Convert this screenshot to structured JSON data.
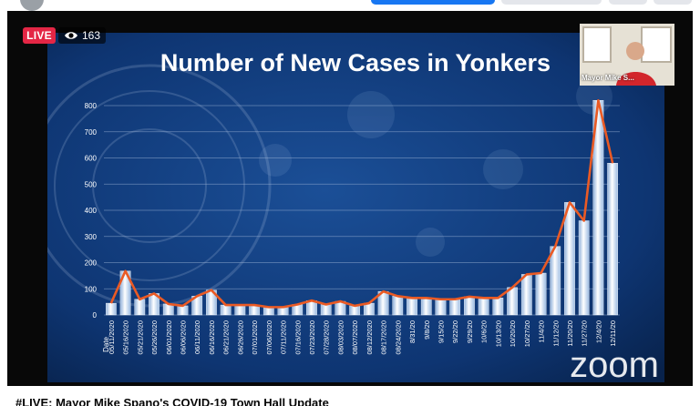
{
  "player": {
    "live_label": "LIVE",
    "viewer_count": "163",
    "speaker_name": "Mayor Mike S...",
    "watermark": "zoom",
    "video_title": "#LIVE: Mayor Mike Spano's COVID-19 Town Hall Update"
  },
  "icons": {
    "viewers": "eye-icon"
  },
  "colors": {
    "live": "#e42645",
    "slide_background": "#0c2f66",
    "bar": "#dfeafa",
    "trend_line": "#ea5a24",
    "facebook_blue": "#1877f2"
  },
  "chart_data": {
    "type": "bar",
    "title": "Number of New Cases in Yonkers",
    "xlabel": "Date",
    "ylabel": "",
    "ylim": [
      0,
      800
    ],
    "yticks": [
      0,
      100,
      200,
      300,
      400,
      500,
      600,
      700,
      800
    ],
    "grid": true,
    "legend": "none",
    "overlay": "line connecting bar tops",
    "categories": [
      "05/11/2020",
      "05/16/2020",
      "05/21/2020",
      "05/26/2020",
      "06/01/2020",
      "06/06/2020",
      "06/11/2020",
      "06/16/2020",
      "06/21/2020",
      "06/26/2020",
      "07/01/2020",
      "07/06/2020",
      "07/11/2020",
      "07/16/2020",
      "07/23/2020",
      "07/28/2020",
      "08/03/2020",
      "08/07/2020",
      "08/12/2020",
      "08/17/2020",
      "08/24/2020",
      "8/31/20",
      "9/8/20",
      "9/15/20",
      "9/22/20",
      "9/29/20",
      "10/6/20",
      "10/13/20",
      "10/20/20",
      "10/27/20",
      "11/4/20",
      "11/12/20",
      "11/20/20",
      "11/27/20",
      "12/4/20",
      "12/11/20"
    ],
    "values": [
      45,
      168,
      60,
      82,
      42,
      35,
      72,
      95,
      38,
      38,
      38,
      30,
      30,
      40,
      55,
      40,
      52,
      35,
      45,
      90,
      72,
      65,
      65,
      60,
      60,
      70,
      65,
      65,
      105,
      155,
      160,
      262,
      430,
      360,
      820,
      580
    ]
  }
}
